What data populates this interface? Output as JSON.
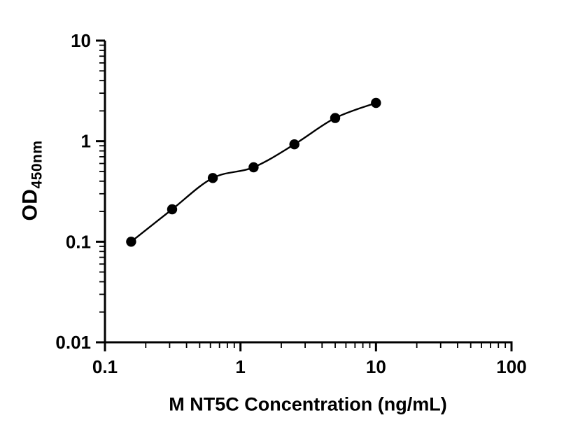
{
  "chart_data": {
    "type": "scatter",
    "title": "",
    "xlabel": "M NT5C Concentration (ng/mL)",
    "ylabel_main": "OD",
    "ylabel_sub": "450nm",
    "x": [
      0.156,
      0.313,
      0.625,
      1.25,
      2.5,
      5,
      10
    ],
    "y": [
      0.1,
      0.21,
      0.43,
      0.55,
      0.93,
      1.7,
      2.4
    ],
    "x_scale": "log",
    "y_scale": "log",
    "xlim": [
      0.1,
      100
    ],
    "ylim": [
      0.01,
      10
    ],
    "x_ticks": [
      0.1,
      1,
      10,
      100
    ],
    "x_tick_labels": [
      "0.1",
      "1",
      "10",
      "100"
    ],
    "y_ticks": [
      0.01,
      0.1,
      1,
      10
    ],
    "y_tick_labels": [
      "0.01",
      "0.1",
      "1",
      "10"
    ],
    "fit_line": true,
    "grid": false,
    "legend": "none",
    "marker_color": "#000000",
    "line_color": "#000000",
    "axis_color": "#000000",
    "background": "#ffffff"
  }
}
